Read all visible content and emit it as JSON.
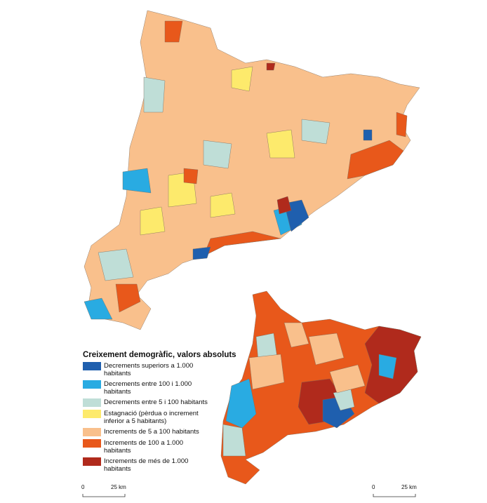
{
  "legend": {
    "title": "Creixement demogràfic, valors absoluts",
    "items": [
      {
        "label": "Decrements superiors a 1.000 habitants",
        "color": "#1f5fae"
      },
      {
        "label": "Decrements entre 100 i 1.000 habitants",
        "color": "#29abe2"
      },
      {
        "label": "Decrements entre 5 i 100 habitants",
        "color": "#bfded7"
      },
      {
        "label": "Estagnació (pèrdua o increment inferior a 5 habitants)",
        "color": "#fdea6c"
      },
      {
        "label": "Increments de 5 a 100 habitants",
        "color": "#f9c08c"
      },
      {
        "label": "Increments de 100 a 1.000 habitants",
        "color": "#e8581b"
      },
      {
        "label": "Increments de més de 1.000 habitants",
        "color": "#b02a1c"
      }
    ]
  },
  "scale_bars": [
    {
      "start": "0",
      "end": "25 km"
    },
    {
      "start": "0",
      "end": "25 km"
    }
  ]
}
